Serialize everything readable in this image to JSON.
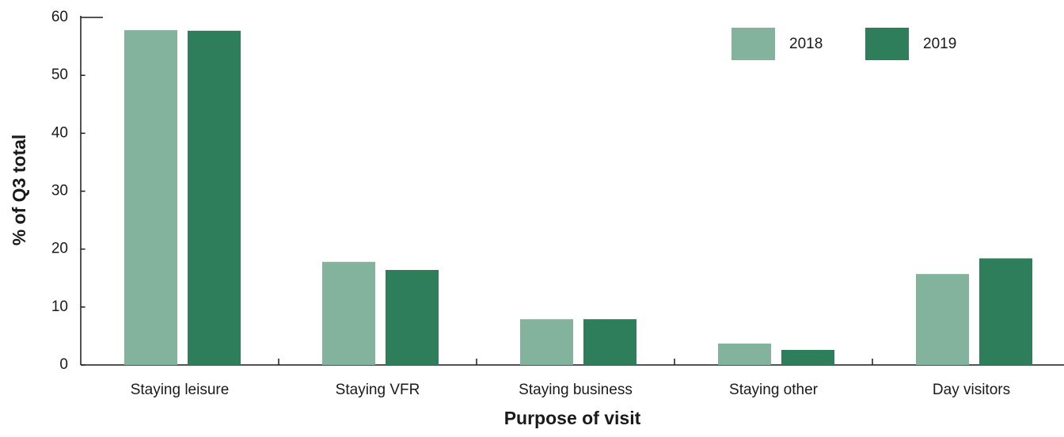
{
  "chart_data": {
    "type": "bar",
    "x_label": "Purpose of visit",
    "y_label": "% of Q3 total",
    "categories": [
      "Staying leisure",
      "Staying VFR",
      "Staying business",
      "Staying other",
      "Day visitors"
    ],
    "series": [
      {
        "name": "2018",
        "color": "#84b39d",
        "values": [
          57.8,
          17.8,
          7.9,
          3.7,
          15.7
        ]
      },
      {
        "name": "2019",
        "color": "#2e7d5b",
        "values": [
          57.7,
          16.4,
          7.9,
          2.6,
          18.4
        ]
      }
    ],
    "ylim": [
      0,
      60
    ],
    "yticks": [
      0,
      10,
      20,
      30,
      40,
      50,
      60
    ],
    "grid": false,
    "legend": "top-right"
  }
}
